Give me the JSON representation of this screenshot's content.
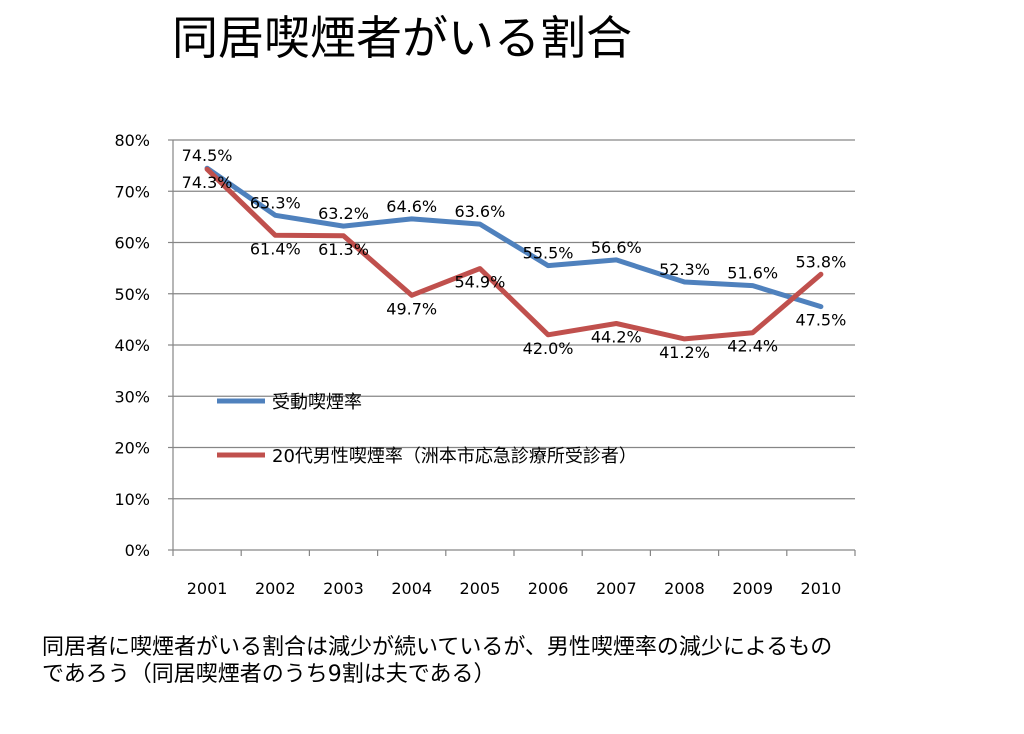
{
  "slide": {
    "title": "同居喫煙者がいる割合",
    "caption_line1": "同居者に喫煙者がいる割合は減少が続いているが、男性喫煙率の減少によるもの",
    "caption_line2": "であろう（同居喫煙者のうち9割は夫である）"
  },
  "chart_data": {
    "type": "line",
    "categories": [
      "2001",
      "2002",
      "2003",
      "2004",
      "2005",
      "2006",
      "2007",
      "2008",
      "2009",
      "2010"
    ],
    "ylim": [
      0,
      80
    ],
    "yticks": [
      "0%",
      "10%",
      "20%",
      "30%",
      "40%",
      "50%",
      "60%",
      "70%",
      "80%"
    ],
    "grid": true,
    "legend_position": "inside-left",
    "series": [
      {
        "name": "受動喫煙率",
        "color": "#4f81bd",
        "values": [
          74.5,
          65.3,
          63.2,
          64.6,
          63.6,
          55.5,
          56.6,
          52.3,
          51.6,
          47.5
        ],
        "labels": [
          "74.5%",
          "65.3%",
          "63.2%",
          "64.6%",
          "63.6%",
          "55.5%",
          "56.6%",
          "52.3%",
          "51.6%",
          "47.5%"
        ]
      },
      {
        "name": "20代男性喫煙率（洲本市応急診療所受診者）",
        "color": "#c0504d",
        "values": [
          74.3,
          61.4,
          61.3,
          49.7,
          54.9,
          42.0,
          44.2,
          41.2,
          42.4,
          53.8
        ],
        "labels": [
          "74.3%",
          "61.4%",
          "61.3%",
          "49.7%",
          "54.9%",
          "42.0%",
          "44.2%",
          "41.2%",
          "42.4%",
          "53.8%"
        ]
      }
    ]
  }
}
